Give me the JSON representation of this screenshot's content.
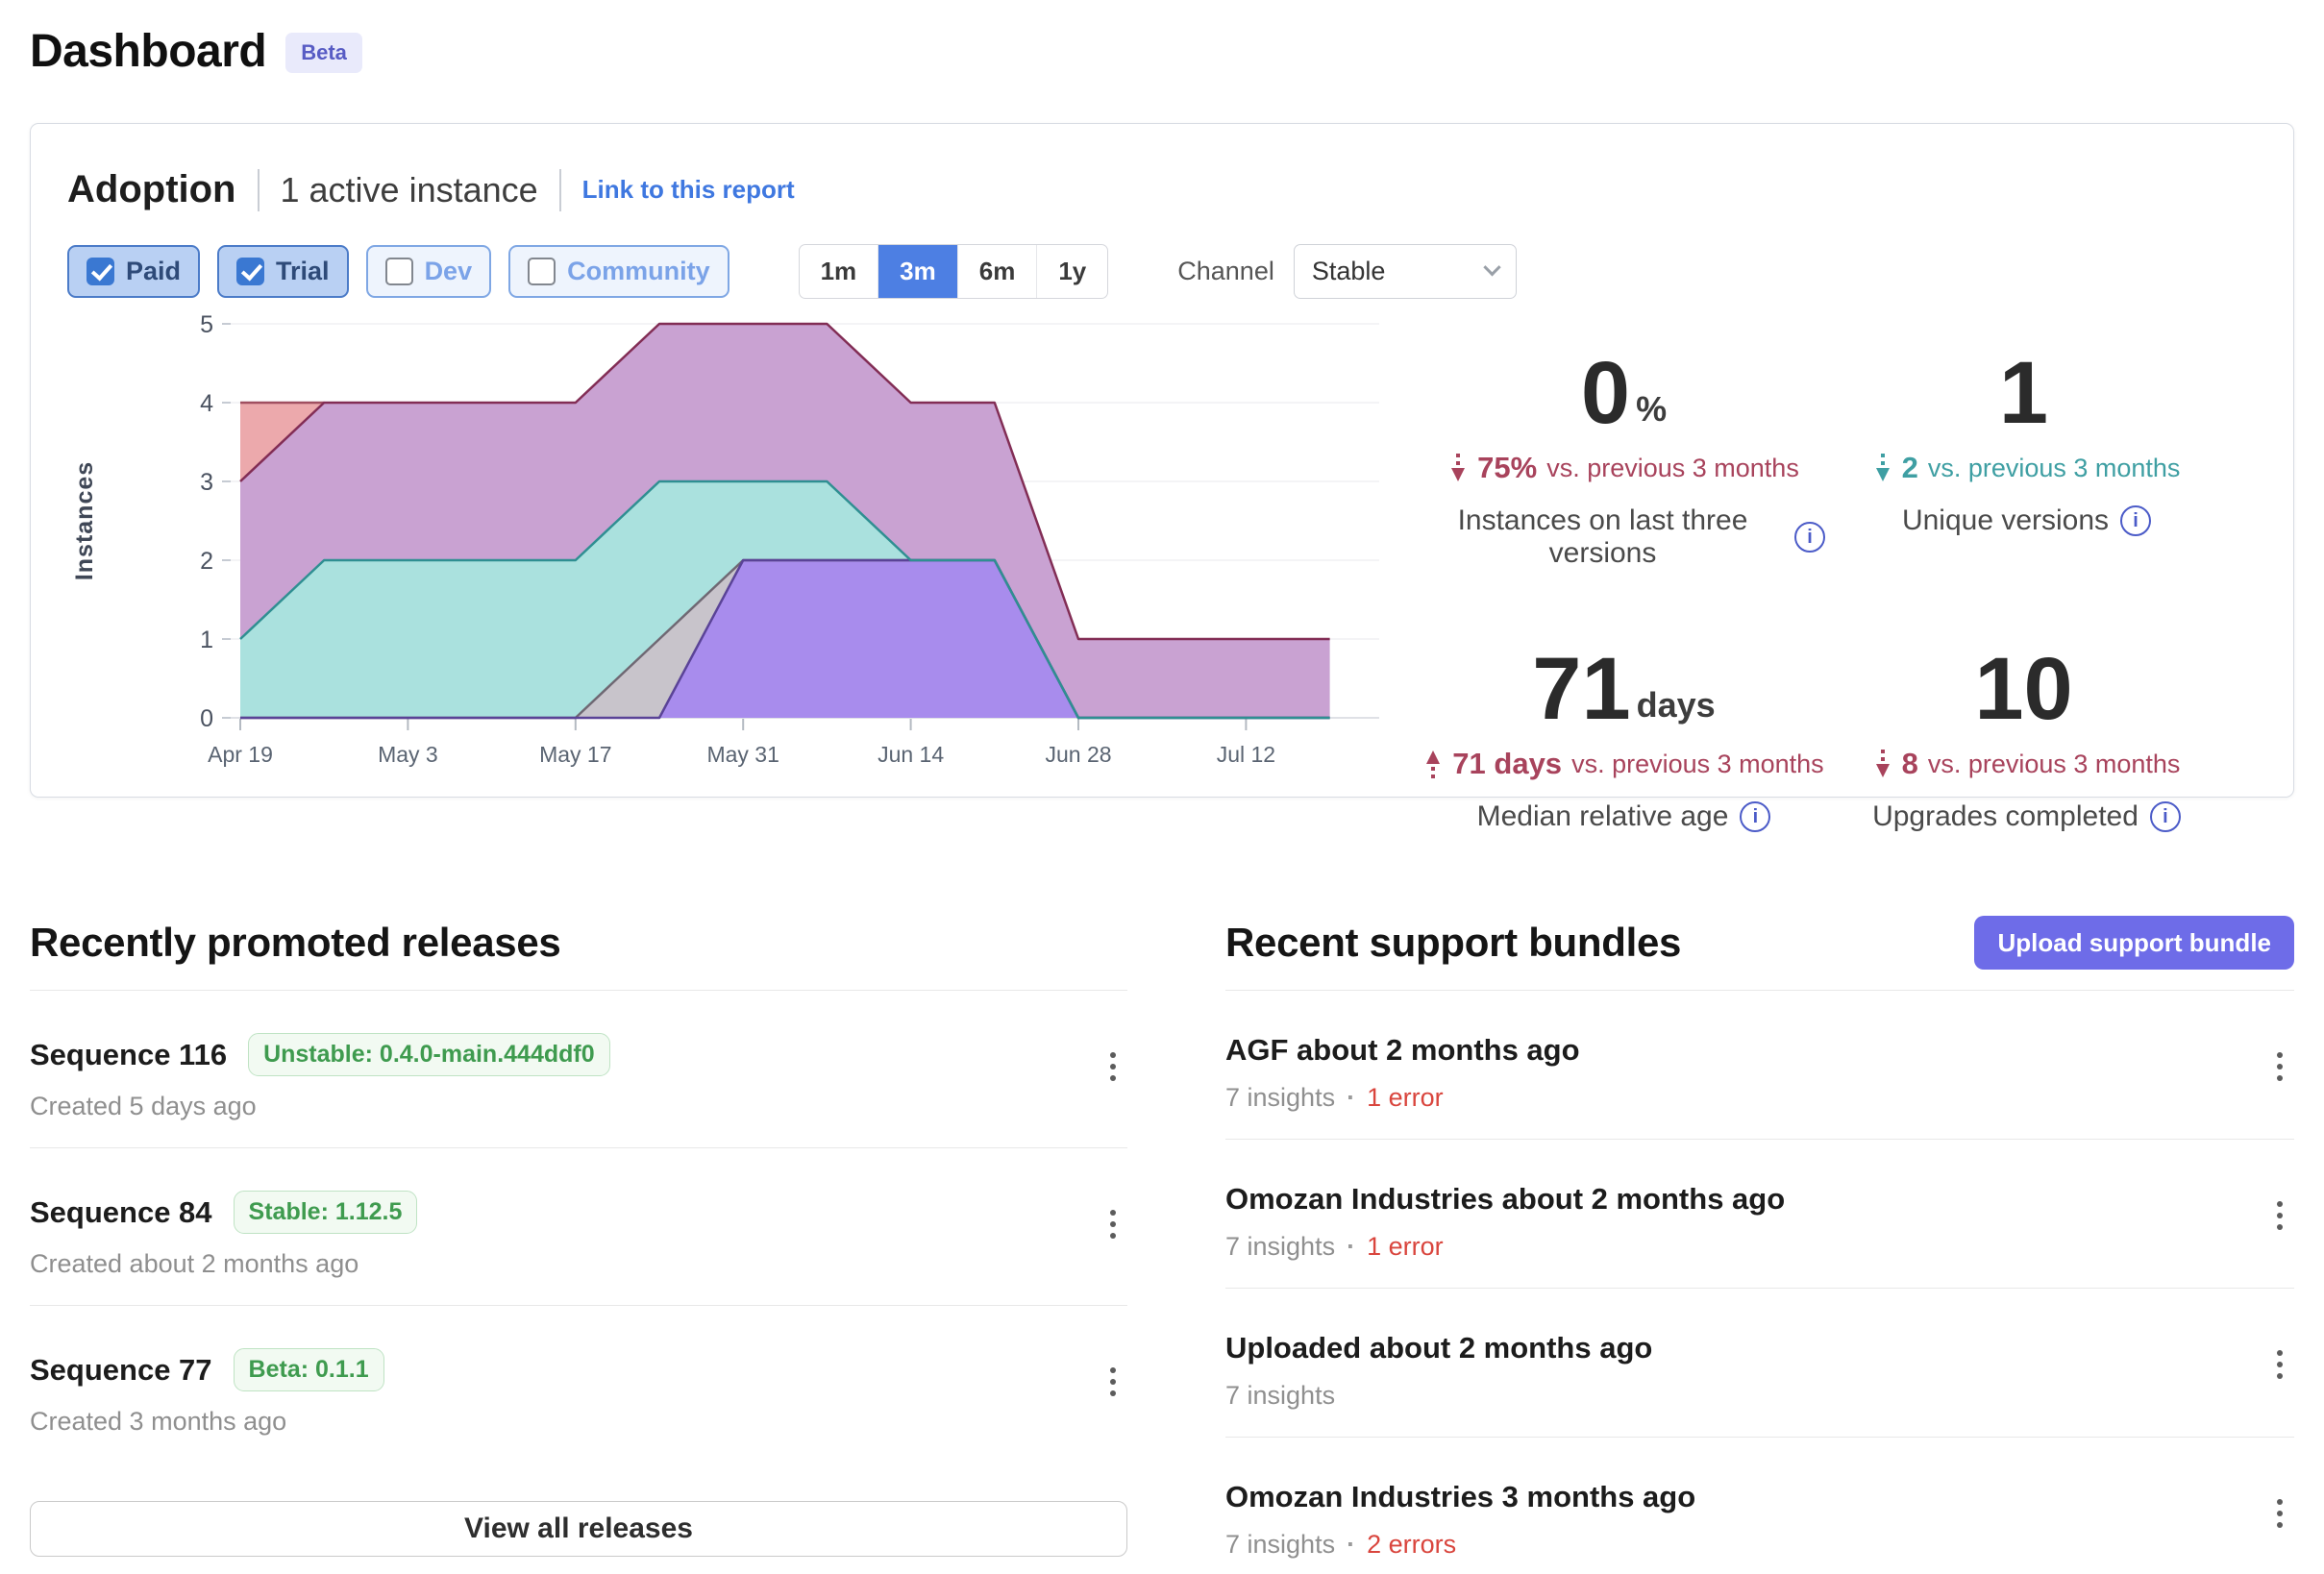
{
  "page": {
    "title": "Dashboard",
    "badge": "Beta"
  },
  "adoption": {
    "title": "Adoption",
    "subtitle": "1 active instance",
    "link": "Link to this report",
    "filters": [
      {
        "label": "Paid",
        "checked": true
      },
      {
        "label": "Trial",
        "checked": true
      },
      {
        "label": "Dev",
        "checked": false
      },
      {
        "label": "Community",
        "checked": false
      }
    ],
    "ranges": {
      "options": [
        "1m",
        "3m",
        "6m",
        "1y"
      ],
      "selected": "3m"
    },
    "channel": {
      "label": "Channel",
      "value": "Stable"
    },
    "stats": [
      {
        "value": "0",
        "unit": "%",
        "delta": "75%",
        "delta_suffix": "vs. previous 3 months",
        "direction": "down",
        "tone": "red",
        "label": "Instances on last three versions"
      },
      {
        "value": "1",
        "unit": "",
        "delta": "2",
        "delta_suffix": "vs. previous 3 months",
        "direction": "down",
        "tone": "teal",
        "label": "Unique versions"
      },
      {
        "value": "71",
        "unit": "days",
        "delta": "71 days",
        "delta_suffix": "vs. previous 3 months",
        "direction": "up",
        "tone": "red",
        "label": "Median relative age"
      },
      {
        "value": "10",
        "unit": "",
        "delta": "8",
        "delta_suffix": "vs. previous 3 months",
        "direction": "down",
        "tone": "red",
        "label": "Upgrades completed"
      }
    ],
    "colors": {
      "accent_blue": "#4d7fe3",
      "indigo_button": "#6e6ce8",
      "delta_red": "#a8435c",
      "delta_teal": "#3f9fa3",
      "badge_green": "#3f9b4f",
      "error_red": "#d9453d",
      "link_blue": "#3f78e0"
    }
  },
  "chart_data": {
    "type": "area",
    "title": "Adoption instances by version over time",
    "xlabel": "",
    "ylabel": "Instances",
    "ylim": [
      0,
      5
    ],
    "grid": true,
    "legend": false,
    "x": [
      "Apr 19",
      "Apr 26",
      "May 3",
      "May 10",
      "May 17",
      "May 24",
      "May 31",
      "Jun 7",
      "Jun 14",
      "Jun 21",
      "Jun 28",
      "Jul 5",
      "Jul 12",
      "Jul 19"
    ],
    "x_ticks": [
      "Apr 19",
      "May 3",
      "May 17",
      "May 31",
      "Jun 14",
      "Jun 28",
      "Jul 12"
    ],
    "x_tick_index": [
      0,
      2,
      4,
      6,
      8,
      10,
      12
    ],
    "y_ticks": [
      0,
      1,
      2,
      3,
      4,
      5
    ],
    "series": [
      {
        "name": "version-salmon",
        "color": "#eca9ac",
        "line": "#a04f60",
        "values": [
          4,
          4,
          null,
          null,
          null,
          null,
          null,
          null,
          null,
          null,
          null,
          null,
          null,
          null
        ]
      },
      {
        "name": "version-mauve",
        "color": "#c9a2d2",
        "line": "#822d55",
        "values": [
          3,
          4,
          4,
          4,
          4,
          5,
          5,
          5,
          4,
          4,
          1,
          1,
          1,
          1
        ]
      },
      {
        "name": "version-teal",
        "color": "#aae1de",
        "line": "#2f8f92",
        "values": [
          1,
          2,
          2,
          2,
          2,
          3,
          3,
          3,
          2,
          2,
          0,
          0,
          0,
          0
        ]
      },
      {
        "name": "version-gray",
        "color": "#c8c4cb",
        "line": "#6f6873",
        "values": [
          0,
          0,
          0,
          0,
          0,
          1,
          2,
          2,
          2,
          2,
          0,
          0,
          0,
          0
        ]
      },
      {
        "name": "version-violet",
        "color": "#a88ced",
        "line": "#5a4397",
        "values": [
          0,
          0,
          0,
          0,
          0,
          0,
          2,
          2,
          2,
          2,
          0,
          0,
          0,
          0
        ]
      }
    ],
    "fill_order": [
      0,
      1,
      2,
      3,
      4
    ],
    "stroke_order": [
      0,
      1,
      3,
      4,
      2
    ]
  },
  "releases": {
    "heading": "Recently promoted releases",
    "view_all": "View all releases",
    "items": [
      {
        "name": "Sequence 116",
        "badge": "Unstable: 0.4.0-main.444ddf0",
        "created": "Created 5 days ago"
      },
      {
        "name": "Sequence 84",
        "badge": "Stable: 1.12.5",
        "created": "Created about 2 months ago"
      },
      {
        "name": "Sequence 77",
        "badge": "Beta: 0.1.1",
        "created": "Created 3 months ago"
      }
    ]
  },
  "bundles": {
    "heading": "Recent support bundles",
    "upload_button": "Upload support bundle",
    "items": [
      {
        "name": "AGF about 2 months ago",
        "insights": "7 insights",
        "errors": "1 error"
      },
      {
        "name": "Omozan Industries about 2 months ago",
        "insights": "7 insights",
        "errors": "1 error"
      },
      {
        "name": "Uploaded about 2 months ago",
        "insights": "7 insights",
        "errors": ""
      },
      {
        "name": "Omozan Industries 3 months ago",
        "insights": "7 insights",
        "errors": "2 errors"
      }
    ]
  }
}
